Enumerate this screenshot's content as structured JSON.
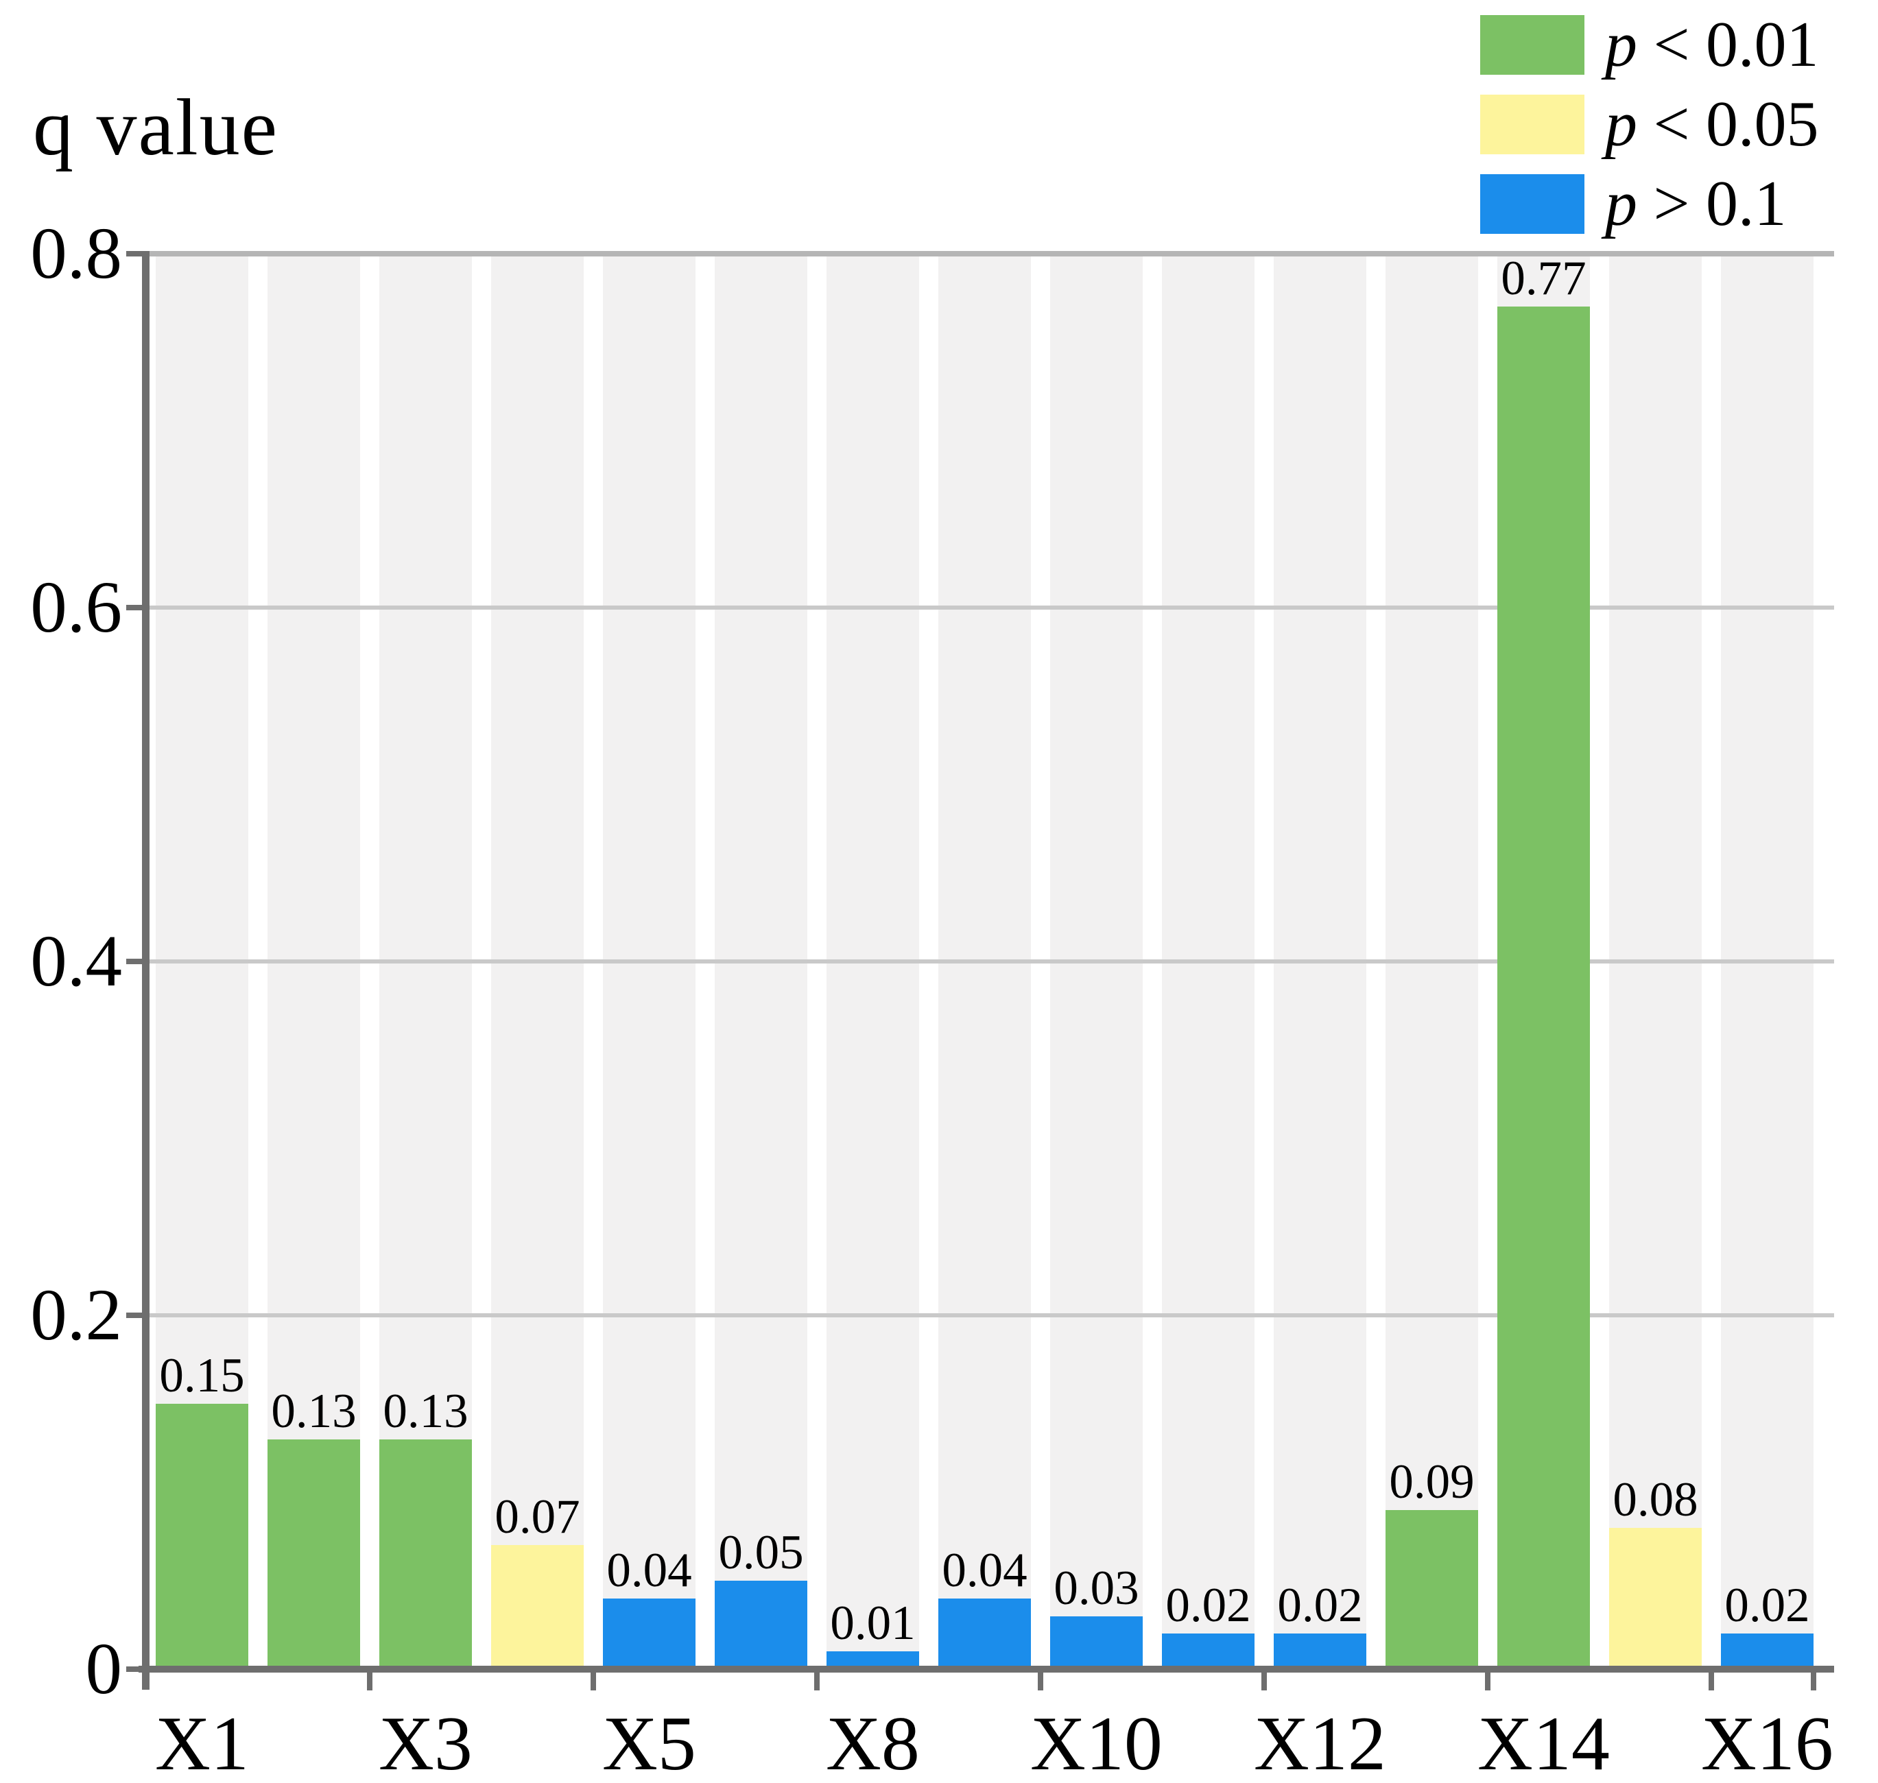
{
  "chart_data": {
    "type": "bar",
    "title": "q value",
    "ylabel": "q value",
    "ylim": [
      0,
      0.8
    ],
    "grid": "horizontal",
    "plot_background": "striped-columns",
    "y_ticks": [
      {
        "value": 0,
        "label": "0"
      },
      {
        "value": 0.2,
        "label": "0.2"
      },
      {
        "value": 0.4,
        "label": "0.4"
      },
      {
        "value": 0.6,
        "label": "0.6"
      },
      {
        "value": 0.8,
        "label": "0.8"
      }
    ],
    "colors": {
      "p < 0.01": "#7cc164",
      "p < 0.05": "#fdf49c",
      "p > 0.1": "#1b8deb"
    },
    "bars": [
      {
        "value": 0.15,
        "label": "0.15",
        "group": "p < 0.01"
      },
      {
        "value": 0.13,
        "label": "0.13",
        "group": "p < 0.01"
      },
      {
        "value": 0.13,
        "label": "0.13",
        "group": "p < 0.01"
      },
      {
        "value": 0.07,
        "label": "0.07",
        "group": "p < 0.05"
      },
      {
        "value": 0.04,
        "label": "0.04",
        "group": "p > 0.1"
      },
      {
        "value": 0.05,
        "label": "0.05",
        "group": "p > 0.1"
      },
      {
        "value": 0.01,
        "label": "0.01",
        "group": "p > 0.1"
      },
      {
        "value": 0.04,
        "label": "0.04",
        "group": "p > 0.1"
      },
      {
        "value": 0.03,
        "label": "0.03",
        "group": "p > 0.1"
      },
      {
        "value": 0.02,
        "label": "0.02",
        "group": "p > 0.1"
      },
      {
        "value": 0.02,
        "label": "0.02",
        "group": "p > 0.1"
      },
      {
        "value": 0.09,
        "label": "0.09",
        "group": "p < 0.01"
      },
      {
        "value": 0.77,
        "label": "0.77",
        "group": "p < 0.01"
      },
      {
        "value": 0.08,
        "label": "0.08",
        "group": "p < 0.05"
      },
      {
        "value": 0.02,
        "label": "0.02",
        "group": "p > 0.1"
      }
    ],
    "x_ticks": [
      {
        "label": "X1",
        "bar_index": 0
      },
      {
        "label": "X3",
        "bar_index": 2
      },
      {
        "label": "X5",
        "bar_index": 4
      },
      {
        "label": "X8",
        "bar_index": 6
      },
      {
        "label": "X10",
        "bar_index": 8
      },
      {
        "label": "X12",
        "bar_index": 10
      },
      {
        "label": "X14",
        "bar_index": 12
      },
      {
        "label": "X16",
        "bar_index": 14
      }
    ],
    "legend_position": "top-right",
    "legend": [
      {
        "symbol": "p",
        "text": " < 0.01",
        "label": "p < 0.01",
        "color": "#7cc164"
      },
      {
        "symbol": "p",
        "text": " < 0.05",
        "label": "p < 0.05",
        "color": "#fdf49c"
      },
      {
        "symbol": "p",
        "text": " > 0.1",
        "label": "p > 0.1",
        "color": "#1b8deb"
      }
    ]
  }
}
